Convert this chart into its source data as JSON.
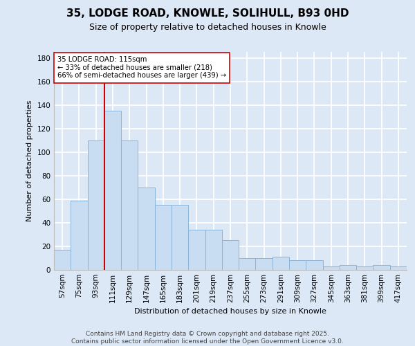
{
  "title": "35, LODGE ROAD, KNOWLE, SOLIHULL, B93 0HD",
  "subtitle": "Size of property relative to detached houses in Knowle",
  "xlabel": "Distribution of detached houses by size in Knowle",
  "ylabel": "Number of detached properties",
  "categories": [
    "57sqm",
    "75sqm",
    "93sqm",
    "111sqm",
    "129sqm",
    "147sqm",
    "165sqm",
    "183sqm",
    "201sqm",
    "219sqm",
    "237sqm",
    "255sqm",
    "273sqm",
    "291sqm",
    "309sqm",
    "327sqm",
    "345sqm",
    "363sqm",
    "381sqm",
    "399sqm",
    "417sqm"
  ],
  "values": [
    17,
    59,
    110,
    135,
    110,
    70,
    55,
    55,
    34,
    34,
    25,
    10,
    10,
    11,
    8,
    8,
    3,
    4,
    3,
    4,
    3
  ],
  "bar_color": "#c9ddf2",
  "bar_edge_color": "#8ab4d8",
  "background_color": "#dce8f5",
  "fig_color": "#dce8f5",
  "grid_color": "#ffffff",
  "vline_color": "#cc0000",
  "vline_index": 3.5,
  "annotation_text": "35 LODGE ROAD: 115sqm\n← 33% of detached houses are smaller (218)\n66% of semi-detached houses are larger (439) →",
  "annotation_box_color": "#ffffff",
  "annotation_box_edge": "#cc0000",
  "footer_text": "Contains HM Land Registry data © Crown copyright and database right 2025.\nContains public sector information licensed under the Open Government Licence v3.0.",
  "ylim": [
    0,
    185
  ],
  "yticks": [
    0,
    20,
    40,
    60,
    80,
    100,
    120,
    140,
    160,
    180
  ],
  "title_fontsize": 11,
  "subtitle_fontsize": 9,
  "ylabel_fontsize": 8,
  "xlabel_fontsize": 8,
  "tick_fontsize": 7.5,
  "footer_fontsize": 6.5
}
